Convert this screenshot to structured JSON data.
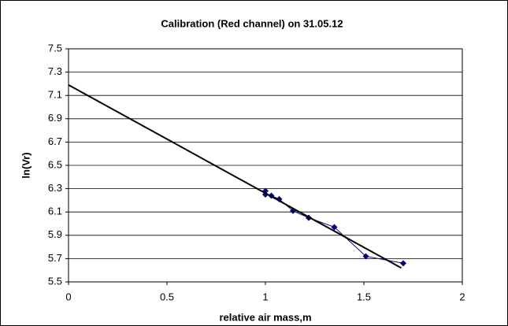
{
  "chart_data": {
    "type": "scatter",
    "title": "Calibration (Red channel) on 31.05.12",
    "xlabel": "relative air mass,m",
    "ylabel": "ln(Vr)",
    "xlim": [
      0,
      2
    ],
    "xticks": [
      0,
      0.5,
      1,
      1.5,
      2
    ],
    "ylim": [
      5.5,
      7.5
    ],
    "yticks": [
      5.5,
      5.7,
      5.9,
      6.1,
      6.3,
      6.5,
      6.7,
      6.9,
      7.1,
      7.3,
      7.5
    ],
    "grid": true,
    "series": [
      {
        "color": "#000080",
        "markers": true,
        "x": [
          1.0,
          1.0,
          1.03,
          1.07,
          1.14,
          1.22,
          1.35,
          1.51,
          1.7
        ],
        "values": [
          6.28,
          6.25,
          6.24,
          6.21,
          6.11,
          6.05,
          5.97,
          5.72,
          5.66
        ]
      },
      {
        "color": "#000000",
        "markers": false,
        "x": [
          0,
          1.69
        ],
        "values": [
          7.19,
          5.62
        ]
      }
    ]
  }
}
